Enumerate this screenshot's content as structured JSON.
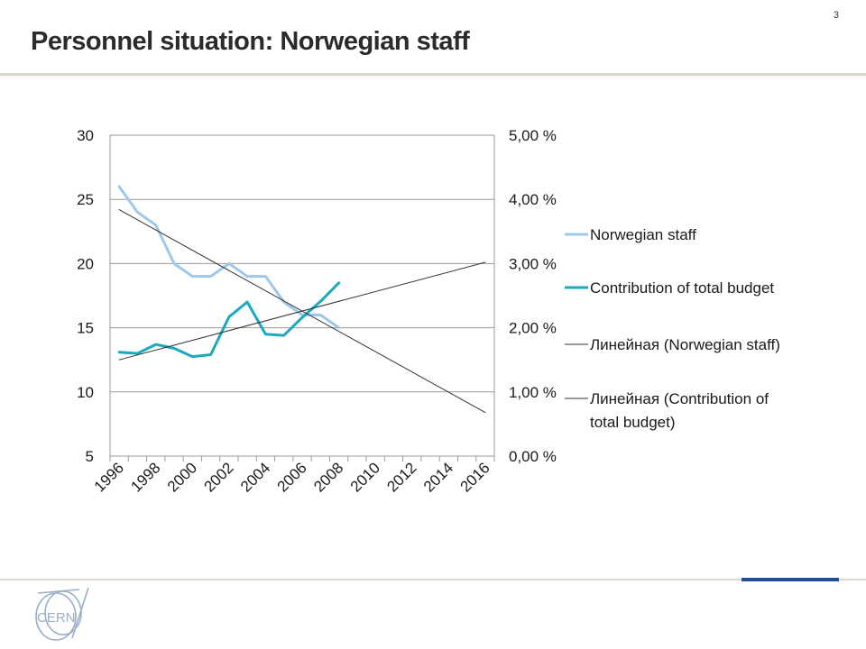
{
  "header": {
    "title": "Personnel situation: Norwegian staff",
    "page_number": "3"
  },
  "colors": {
    "staff_line": "#9dc8ec",
    "budget_line": "#1aa9bd",
    "trend_line": "#333333",
    "grid": "#9a9a9a",
    "accent": "#1f4e97",
    "logo": "#9aaec6"
  },
  "logo": {
    "text": "CERN",
    "icon": "cern-logo-icon"
  },
  "chart_data": {
    "type": "line",
    "x_categories": [
      "1996",
      "1997",
      "1998",
      "1999",
      "2000",
      "2001",
      "2002",
      "2003",
      "2004",
      "2005",
      "2006",
      "2007",
      "2008",
      "2009",
      "2010",
      "2011",
      "2012",
      "2013",
      "2014",
      "2015",
      "2016"
    ],
    "x_tick_labels": [
      "1996",
      "1998",
      "2000",
      "2002",
      "2004",
      "2006",
      "2008",
      "2010",
      "2012",
      "2014",
      "2016"
    ],
    "left_axis": {
      "ylim": [
        5,
        30
      ],
      "ticks": [
        "5",
        "10",
        "15",
        "20",
        "25",
        "30"
      ]
    },
    "right_axis": {
      "ylim": [
        0,
        5
      ],
      "ticks": [
        "0,00 %",
        "1,00 %",
        "2,00 %",
        "3,00 %",
        "4,00 %",
        "5,00 %"
      ]
    },
    "grid": true,
    "legend_position": "right",
    "series": [
      {
        "name": "Norwegian staff",
        "axis": "left",
        "x": [
          "1996",
          "1997",
          "1998",
          "1999",
          "2000",
          "2001",
          "2002",
          "2003",
          "2004",
          "2005",
          "2006",
          "2007",
          "2008"
        ],
        "values": [
          26,
          24,
          23,
          20,
          19,
          19,
          20,
          19,
          19,
          17,
          16,
          16,
          15
        ]
      },
      {
        "name": "Contribution of total budget",
        "axis": "right",
        "x": [
          "1996",
          "1997",
          "1998",
          "1999",
          "2000",
          "2001",
          "2002",
          "2003",
          "2004",
          "2005",
          "2006",
          "2007",
          "2008"
        ],
        "values": [
          1.62,
          1.6,
          1.74,
          1.68,
          1.55,
          1.58,
          2.17,
          2.4,
          1.9,
          1.88,
          2.16,
          2.41,
          2.7
        ]
      },
      {
        "name": "Линейная (Norwegian staff)",
        "axis": "left",
        "type": "trendline",
        "x": [
          "1996",
          "2016"
        ],
        "values": [
          24.2,
          8.4
        ]
      },
      {
        "name": "Линейная (Contribution of total budget)",
        "axis": "right",
        "type": "trendline",
        "x": [
          "1996",
          "2016"
        ],
        "values": [
          1.5,
          3.02
        ]
      }
    ],
    "legend": [
      {
        "lines": [
          "Norwegian staff"
        ]
      },
      {
        "lines": [
          "Contribution of total budget"
        ]
      },
      {
        "lines": [
          "Линейная (Norwegian staff)"
        ]
      },
      {
        "lines": [
          "Линейная (Contribution of",
          "total budget)"
        ]
      }
    ]
  }
}
